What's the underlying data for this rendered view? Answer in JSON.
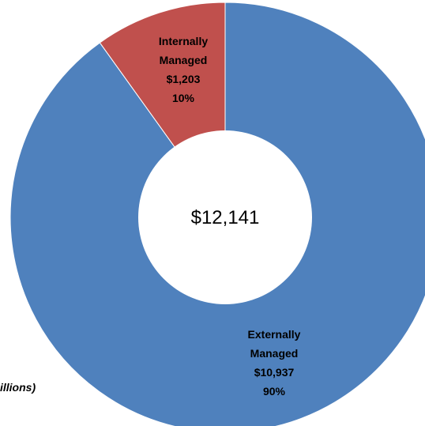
{
  "chart_data": {
    "type": "pie",
    "style": "donut",
    "total_label": "$12,141",
    "unit_note": "illions)",
    "slices": [
      {
        "name_lines": [
          "Externally",
          "Managed"
        ],
        "value": 10937,
        "value_label": "$10,937",
        "percent": 90,
        "percent_label": "90%",
        "color": "#4F81BD"
      },
      {
        "name_lines": [
          "Internally",
          "Managed"
        ],
        "value": 1203,
        "value_label": "$1,203",
        "percent": 10,
        "percent_label": "10%",
        "color": "#C0504D"
      }
    ]
  }
}
